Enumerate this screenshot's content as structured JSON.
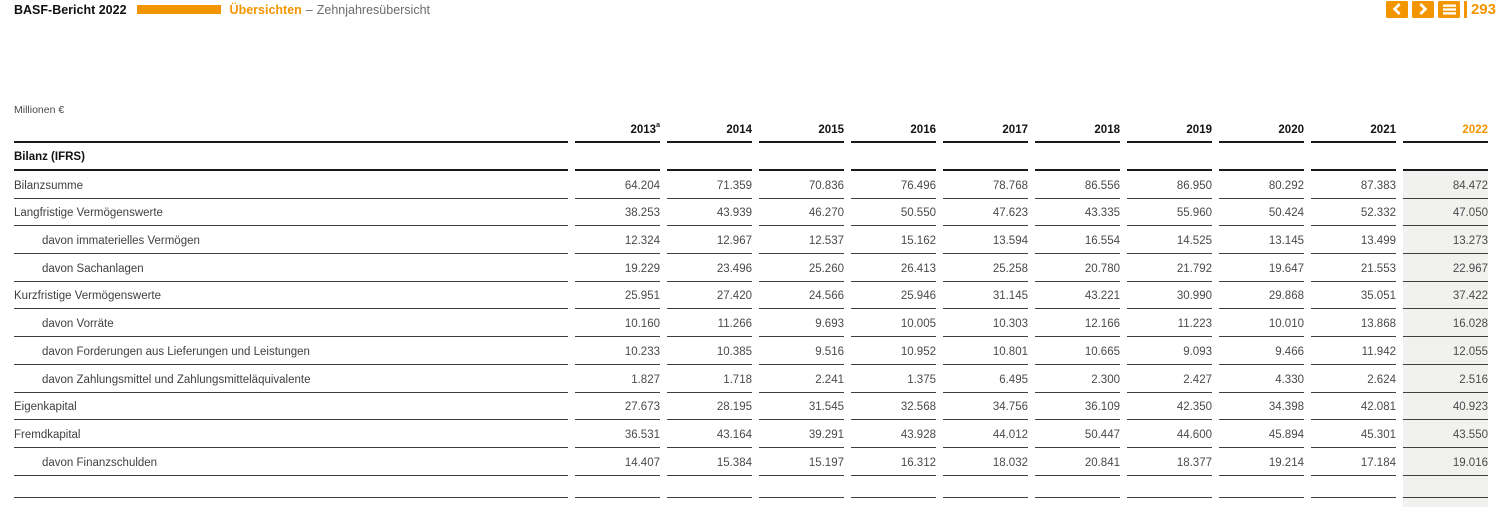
{
  "header": {
    "report_title": "BASF-Bericht 2022",
    "section": "Übersichten",
    "separator": "–",
    "subsection": "Zehnjahresübersicht",
    "page_number": "293"
  },
  "colors": {
    "accent_orange": "#F39500",
    "highlight_column_bg": "#F1F1EF"
  },
  "table": {
    "unit_label": "Millionen €",
    "section_header": "Bilanz (IFRS)",
    "columns": [
      {
        "label": "2013",
        "sup": "a"
      },
      {
        "label": "2014"
      },
      {
        "label": "2015"
      },
      {
        "label": "2016"
      },
      {
        "label": "2017"
      },
      {
        "label": "2018"
      },
      {
        "label": "2019"
      },
      {
        "label": "2020"
      },
      {
        "label": "2021"
      },
      {
        "label": "2022",
        "highlight": true
      }
    ],
    "rows": [
      {
        "label": "Bilanzsumme",
        "indent": false,
        "values": [
          "64.204",
          "71.359",
          "70.836",
          "76.496",
          "78.768",
          "86.556",
          "86.950",
          "80.292",
          "87.383",
          "84.472"
        ]
      },
      {
        "label": "Langfristige Vermögenswerte",
        "indent": false,
        "values": [
          "38.253",
          "43.939",
          "46.270",
          "50.550",
          "47.623",
          "43.335",
          "55.960",
          "50.424",
          "52.332",
          "47.050"
        ]
      },
      {
        "label": "davon immaterielles Vermögen",
        "indent": true,
        "values": [
          "12.324",
          "12.967",
          "12.537",
          "15.162",
          "13.594",
          "16.554",
          "14.525",
          "13.145",
          "13.499",
          "13.273"
        ]
      },
      {
        "label": "davon Sachanlagen",
        "indent": true,
        "values": [
          "19.229",
          "23.496",
          "25.260",
          "26.413",
          "25.258",
          "20.780",
          "21.792",
          "19.647",
          "21.553",
          "22.967"
        ]
      },
      {
        "label": "Kurzfristige Vermögenswerte",
        "indent": false,
        "values": [
          "25.951",
          "27.420",
          "24.566",
          "25.946",
          "31.145",
          "43.221",
          "30.990",
          "29.868",
          "35.051",
          "37.422"
        ]
      },
      {
        "label": "davon Vorräte",
        "indent": true,
        "values": [
          "10.160",
          "11.266",
          "9.693",
          "10.005",
          "10.303",
          "12.166",
          "11.223",
          "10.010",
          "13.868",
          "16.028"
        ]
      },
      {
        "label": "davon Forderungen aus Lieferungen und Leistungen",
        "indent": true,
        "values": [
          "10.233",
          "10.385",
          "9.516",
          "10.952",
          "10.801",
          "10.665",
          "9.093",
          "9.466",
          "11.942",
          "12.055"
        ]
      },
      {
        "label": "davon Zahlungsmittel und Zahlungsmitteläquivalente",
        "indent": true,
        "values": [
          "1.827",
          "1.718",
          "2.241",
          "1.375",
          "6.495",
          "2.300",
          "2.427",
          "4.330",
          "2.624",
          "2.516"
        ]
      },
      {
        "label": "Eigenkapital",
        "indent": false,
        "values": [
          "27.673",
          "28.195",
          "31.545",
          "32.568",
          "34.756",
          "36.109",
          "42.350",
          "34.398",
          "42.081",
          "40.923"
        ]
      },
      {
        "label": "Fremdkapital",
        "indent": false,
        "values": [
          "36.531",
          "43.164",
          "39.291",
          "43.928",
          "44.012",
          "50.447",
          "44.600",
          "45.894",
          "45.301",
          "43.550"
        ]
      },
      {
        "label": "davon Finanzschulden",
        "indent": true,
        "values": [
          "14.407",
          "15.384",
          "15.197",
          "16.312",
          "18.032",
          "20.841",
          "18.377",
          "19.214",
          "17.184",
          "19.016"
        ]
      }
    ]
  }
}
